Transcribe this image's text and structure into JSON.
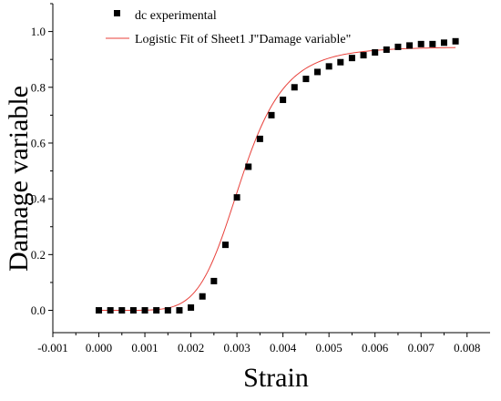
{
  "chart_data": {
    "type": "scatter",
    "title": "",
    "xlabel": "Strain",
    "ylabel": "Damage variable",
    "xlim": [
      -0.001,
      0.0085
    ],
    "ylim": [
      -0.08,
      1.1
    ],
    "x_ticks": [
      -0.001,
      0.0,
      0.001,
      0.002,
      0.003,
      0.004,
      0.005,
      0.006,
      0.007,
      0.008
    ],
    "x_tick_labels": [
      "-0.001",
      "0.000",
      "0.001",
      "0.002",
      "0.003",
      "0.004",
      "0.005",
      "0.006",
      "0.007",
      "0.008"
    ],
    "y_ticks": [
      0.0,
      0.2,
      0.4,
      0.6,
      0.8,
      1.0
    ],
    "y_tick_labels": [
      "0.0",
      "0.2",
      "0.4",
      "0.6",
      "0.8",
      "1.0"
    ],
    "grid": false,
    "legend_position": "top-left",
    "series": [
      {
        "name": "dc experimental",
        "marker": "square",
        "color": "#000000",
        "x": [
          0.0,
          0.00025,
          0.0005,
          0.00075,
          0.001,
          0.00125,
          0.0015,
          0.00175,
          0.002,
          0.00225,
          0.0025,
          0.00275,
          0.003,
          0.00325,
          0.0035,
          0.00375,
          0.004,
          0.00425,
          0.0045,
          0.00475,
          0.005,
          0.00525,
          0.0055,
          0.00575,
          0.006,
          0.00625,
          0.0065,
          0.00675,
          0.007,
          0.00725,
          0.0075,
          0.00775
        ],
        "y": [
          0.0,
          0.0,
          0.0,
          0.0,
          0.0,
          0.0,
          0.0,
          0.0,
          0.01,
          0.05,
          0.105,
          0.235,
          0.405,
          0.515,
          0.615,
          0.7,
          0.755,
          0.8,
          0.83,
          0.855,
          0.875,
          0.89,
          0.905,
          0.915,
          0.925,
          0.935,
          0.945,
          0.95,
          0.955,
          0.955,
          0.96,
          0.965
        ]
      },
      {
        "name": "Logistic Fit of Sheet1 J\"Damage variable\"",
        "line": true,
        "color": "#e8403a",
        "fit": {
          "model": "logistic",
          "A1": 0.0,
          "A2": 0.945,
          "x0": 0.0031,
          "p": 6.5
        },
        "x_range": [
          0.0,
          0.00775
        ]
      }
    ]
  }
}
